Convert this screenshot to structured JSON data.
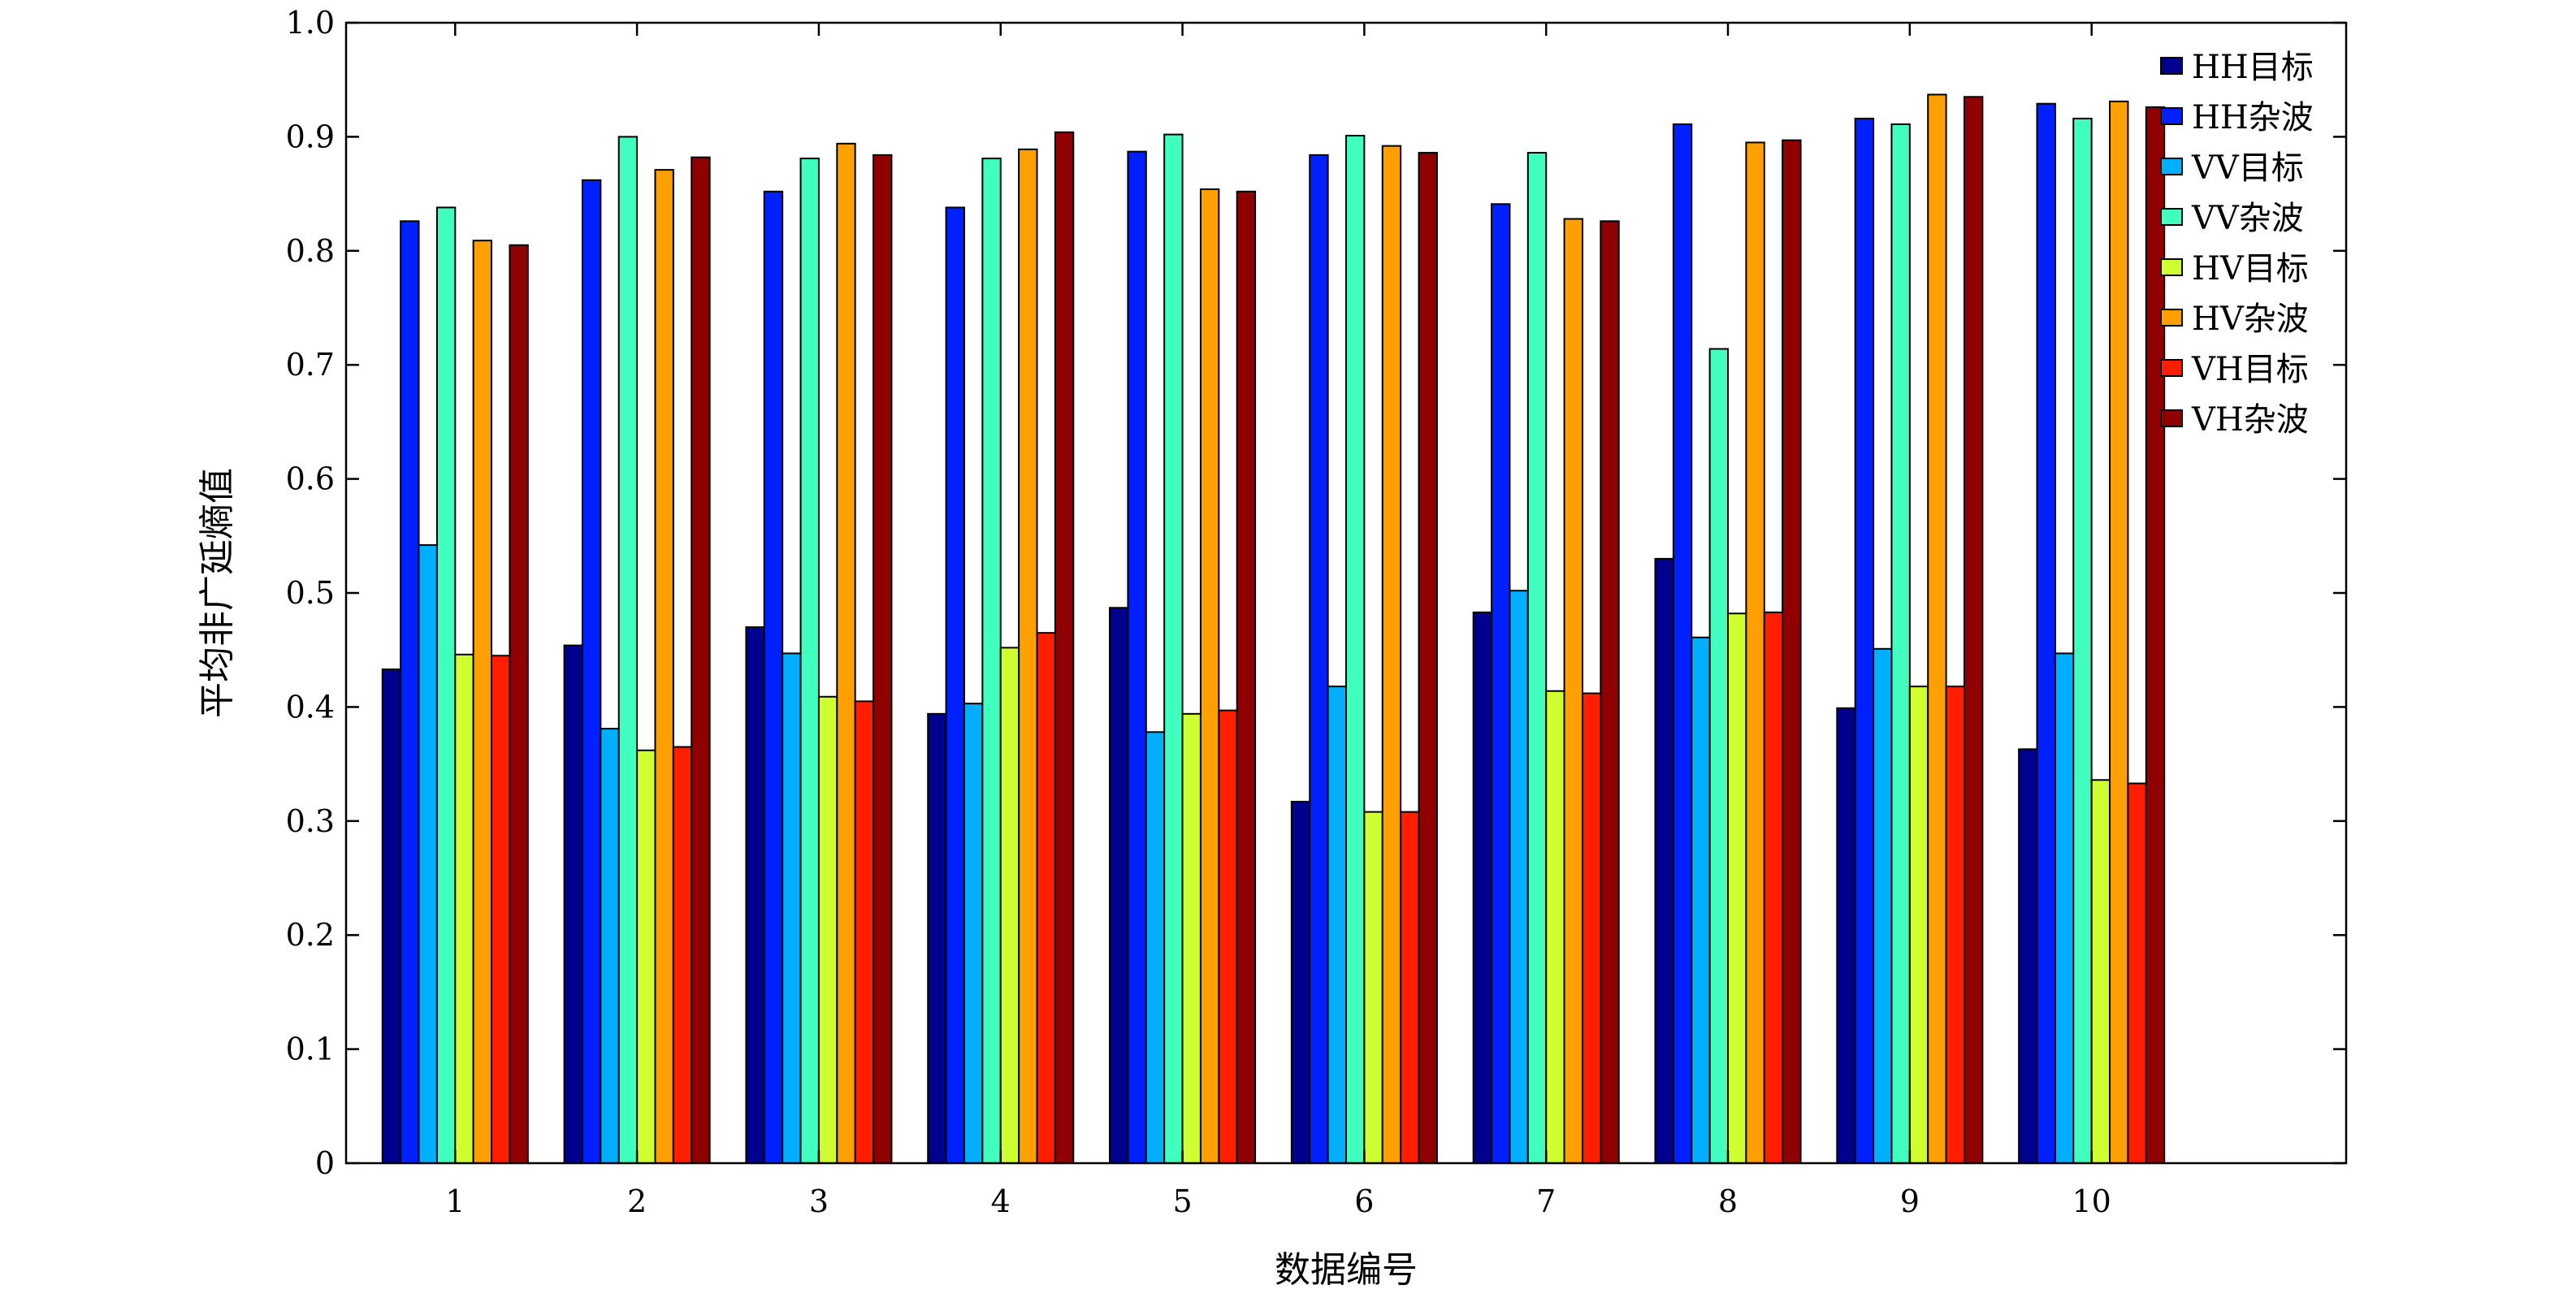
{
  "chart_data": {
    "type": "bar",
    "title": "",
    "xlabel": "数据编号",
    "ylabel": "平均非广延熵值",
    "ylim": [
      0,
      1.0
    ],
    "yticks": [
      "0",
      "0.1",
      "0.2",
      "0.3",
      "0.4",
      "0.5",
      "0.6",
      "0.7",
      "0.8",
      "0.9",
      "1.0"
    ],
    "categories": [
      "1",
      "2",
      "3",
      "4",
      "5",
      "6",
      "7",
      "8",
      "9",
      "10"
    ],
    "xlim": [
      0.4,
      11.4
    ],
    "grid": false,
    "legend_position": "top-right",
    "series": [
      {
        "name": "HH目标",
        "color": "#00008f",
        "values": [
          0.433,
          0.454,
          0.47,
          0.394,
          0.487,
          0.317,
          0.483,
          0.53,
          0.399,
          0.363
        ]
      },
      {
        "name": "HH杂波",
        "color": "#0020ff",
        "values": [
          0.826,
          0.862,
          0.852,
          0.838,
          0.887,
          0.884,
          0.841,
          0.911,
          0.916,
          0.929
        ]
      },
      {
        "name": "VV目标",
        "color": "#00afff",
        "values": [
          0.542,
          0.381,
          0.447,
          0.403,
          0.378,
          0.418,
          0.502,
          0.461,
          0.451,
          0.447
        ]
      },
      {
        "name": "VV杂波",
        "color": "#40ffbf",
        "values": [
          0.838,
          0.9,
          0.881,
          0.881,
          0.902,
          0.901,
          0.886,
          0.714,
          0.911,
          0.916
        ]
      },
      {
        "name": "HV目标",
        "color": "#cfff30",
        "values": [
          0.446,
          0.362,
          0.409,
          0.452,
          0.394,
          0.308,
          0.414,
          0.482,
          0.418,
          0.336
        ]
      },
      {
        "name": "HV杂波",
        "color": "#ff9f00",
        "values": [
          0.809,
          0.871,
          0.894,
          0.889,
          0.854,
          0.892,
          0.828,
          0.895,
          0.937,
          0.931
        ]
      },
      {
        "name": "VH目标",
        "color": "#ff1f00",
        "values": [
          0.445,
          0.365,
          0.405,
          0.465,
          0.397,
          0.308,
          0.412,
          0.483,
          0.418,
          0.333
        ]
      },
      {
        "name": "VH杂波",
        "color": "#8f0000",
        "values": [
          0.805,
          0.882,
          0.884,
          0.904,
          0.852,
          0.886,
          0.826,
          0.897,
          0.935,
          0.926
        ]
      }
    ]
  }
}
